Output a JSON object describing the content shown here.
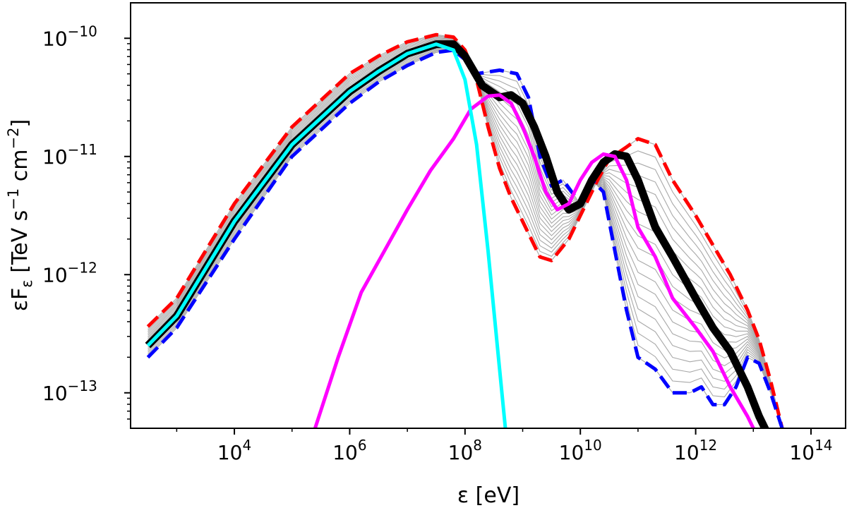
{
  "chart_data": {
    "type": "line",
    "title": "",
    "xlabel": "ε [eV]",
    "ylabel_main": "εF",
    "ylabel_sub": "ε",
    "ylabel_tail": " [TeV s",
    "ylabel_exp1": "−1",
    "ylabel_mid": " cm",
    "ylabel_exp2": "−2",
    "ylabel_close": "]",
    "xscale": "log",
    "yscale": "log",
    "xlim_log10": [
      2.2,
      14.6
    ],
    "ylim_log10": [
      -13.3,
      -9.7
    ],
    "grid": false,
    "legend": "none",
    "x_ticks": [
      {
        "base": "10",
        "exp": "4",
        "log10": 4
      },
      {
        "base": "10",
        "exp": "6",
        "log10": 6
      },
      {
        "base": "10",
        "exp": "8",
        "log10": 8
      },
      {
        "base": "10",
        "exp": "10",
        "log10": 10
      },
      {
        "base": "10",
        "exp": "12",
        "log10": 12
      },
      {
        "base": "10",
        "exp": "14",
        "log10": 14
      }
    ],
    "y_ticks": [
      {
        "base": "10",
        "exp": "−10",
        "log10": -10
      },
      {
        "base": "10",
        "exp": "−11",
        "log10": -11
      },
      {
        "base": "10",
        "exp": "−12",
        "log10": -12
      },
      {
        "base": "10",
        "exp": "−13",
        "log10": -13
      }
    ],
    "series": [
      {
        "name": "red-dashed",
        "color": "#ff0000",
        "style": "dashed",
        "width": 5,
        "log10_x": [
          2.5,
          3,
          4,
          5,
          6,
          6.5,
          7,
          7.5,
          7.8,
          8.0,
          8.2,
          8.4,
          8.6,
          8.8,
          9.0,
          9.3,
          9.5,
          9.8,
          10.0,
          10.3,
          10.5,
          10.8,
          11.0,
          11.3,
          11.6,
          12.0,
          12.3,
          12.6,
          12.9,
          13.1,
          13.3,
          13.5
        ],
        "log10_y": [
          -12.44,
          -12.2,
          -11.4,
          -10.75,
          -10.3,
          -10.15,
          -10.03,
          -9.97,
          -9.99,
          -10.1,
          -10.35,
          -10.75,
          -11.1,
          -11.35,
          -11.55,
          -11.85,
          -11.88,
          -11.7,
          -11.5,
          -11.2,
          -11.02,
          -10.92,
          -10.85,
          -10.9,
          -11.2,
          -11.5,
          -11.75,
          -12.0,
          -12.3,
          -12.55,
          -12.9,
          -13.3
        ]
      },
      {
        "name": "blue-dashed",
        "color": "#0000ff",
        "style": "dashed",
        "width": 5,
        "log10_x": [
          2.5,
          3,
          4,
          5,
          6,
          6.5,
          7,
          7.5,
          7.8,
          8.0,
          8.2,
          8.6,
          8.9,
          9.1,
          9.3,
          9.5,
          9.7,
          10.0,
          10.2,
          10.4,
          10.6,
          10.8,
          11.0,
          11.3,
          11.6,
          11.9,
          12.1,
          12.3,
          12.5,
          12.7,
          12.9,
          13.1,
          13.3,
          13.5
        ],
        "log10_y": [
          -12.7,
          -12.45,
          -11.7,
          -11.0,
          -10.55,
          -10.37,
          -10.23,
          -10.12,
          -10.1,
          -10.18,
          -10.3,
          -10.27,
          -10.3,
          -10.5,
          -11.0,
          -11.25,
          -11.2,
          -11.4,
          -11.2,
          -11.3,
          -11.8,
          -12.3,
          -12.7,
          -12.8,
          -13.0,
          -13.0,
          -12.95,
          -13.1,
          -13.1,
          -12.95,
          -12.7,
          -12.75,
          -13.0,
          -13.3
        ]
      },
      {
        "name": "black-thick",
        "color": "#000000",
        "style": "solid",
        "width": 11,
        "log10_x": [
          2.5,
          3,
          4,
          5,
          6,
          6.5,
          7,
          7.5,
          7.8,
          8.0,
          8.3,
          8.6,
          8.8,
          9.0,
          9.2,
          9.4,
          9.6,
          9.8,
          10.0,
          10.2,
          10.4,
          10.6,
          10.8,
          11.0,
          11.3,
          11.6,
          12.0,
          12.3,
          12.6,
          12.9,
          13.1,
          13.3,
          13.5
        ],
        "log10_y": [
          -12.6,
          -12.35,
          -11.55,
          -10.9,
          -10.45,
          -10.28,
          -10.13,
          -10.05,
          -10.05,
          -10.15,
          -10.4,
          -10.5,
          -10.48,
          -10.55,
          -10.75,
          -11.0,
          -11.3,
          -11.45,
          -11.4,
          -11.2,
          -11.05,
          -10.98,
          -11.0,
          -11.2,
          -11.6,
          -11.85,
          -12.2,
          -12.45,
          -12.65,
          -12.95,
          -13.2,
          -13.4,
          -13.5
        ]
      },
      {
        "name": "magenta",
        "color": "#ff00ff",
        "style": "solid",
        "width": 5,
        "log10_x": [
          5.4,
          5.8,
          6.2,
          6.6,
          7.0,
          7.4,
          7.8,
          8.1,
          8.4,
          8.6,
          8.8,
          9.0,
          9.2,
          9.4,
          9.6,
          9.8,
          10.0,
          10.2,
          10.4,
          10.6,
          10.8,
          11.0,
          11.3,
          11.6,
          12.0,
          12.3,
          12.6,
          12.9,
          13.1,
          13.3,
          13.5
        ],
        "log10_y": [
          -13.3,
          -12.7,
          -12.15,
          -11.8,
          -11.45,
          -11.12,
          -10.85,
          -10.6,
          -10.49,
          -10.48,
          -10.55,
          -10.75,
          -11.0,
          -11.3,
          -11.45,
          -11.4,
          -11.2,
          -11.05,
          -10.98,
          -11.0,
          -11.2,
          -11.6,
          -11.85,
          -12.2,
          -12.45,
          -12.65,
          -12.95,
          -13.2,
          -13.4,
          -13.5,
          -13.5
        ]
      },
      {
        "name": "cyan",
        "color": "#00ffff",
        "style": "solid",
        "width": 5,
        "log10_x": [
          2.5,
          3,
          4,
          5,
          6,
          6.5,
          7,
          7.5,
          7.8,
          8.0,
          8.2,
          8.4,
          8.6,
          8.7
        ],
        "log10_y": [
          -12.6,
          -12.35,
          -11.55,
          -10.9,
          -10.45,
          -10.28,
          -10.13,
          -10.05,
          -10.1,
          -10.35,
          -10.9,
          -11.8,
          -12.8,
          -13.3
        ]
      }
    ]
  }
}
